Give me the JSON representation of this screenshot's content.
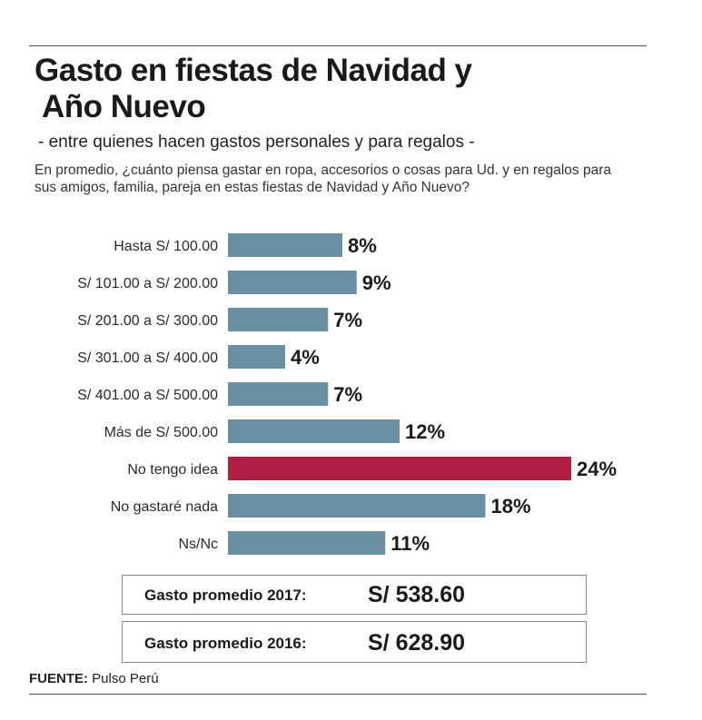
{
  "header": {
    "title_line1": "Gasto en fiestas de Navidad y",
    "title_line2": "Año Nuevo",
    "subtitle": "- entre quienes hacen gastos personales y para regalos -",
    "question": "En promedio, ¿cuánto piensa gastar en ropa, accesorios o cosas para Ud. y en regalos para sus amigos, familia, pareja en estas fiestas de Navidad y Año Nuevo?"
  },
  "chart_data": {
    "type": "bar",
    "orientation": "horizontal",
    "title": "Gasto en fiestas de Navidad y Año Nuevo",
    "categories": [
      "Hasta S/ 100.00",
      "S/ 101.00 a S/ 200.00",
      "S/ 201.00 a S/ 300.00",
      "S/ 301.00 a S/ 400.00",
      "S/ 401.00 a S/ 500.00",
      "Más de S/ 500.00",
      "No tengo idea",
      "No gastaré nada",
      "Ns/Nc"
    ],
    "values": [
      8,
      9,
      7,
      4,
      7,
      12,
      24,
      18,
      11
    ],
    "value_labels": [
      "8%",
      "9%",
      "7%",
      "4%",
      "7%",
      "12%",
      "24%",
      "18%",
      "11%"
    ],
    "highlight_index": 6,
    "colors": {
      "default": "#6a8fa3",
      "highlight": "#b01f43"
    },
    "xlim": [
      0,
      24
    ],
    "grid": false,
    "legend": "none"
  },
  "summary": [
    {
      "label": "Gasto promedio 2017:",
      "value": "S/ 538.60"
    },
    {
      "label": "Gasto promedio 2016:",
      "value": "S/ 628.90"
    }
  ],
  "source": {
    "label": "FUENTE:",
    "text": "Pulso Perú"
  }
}
